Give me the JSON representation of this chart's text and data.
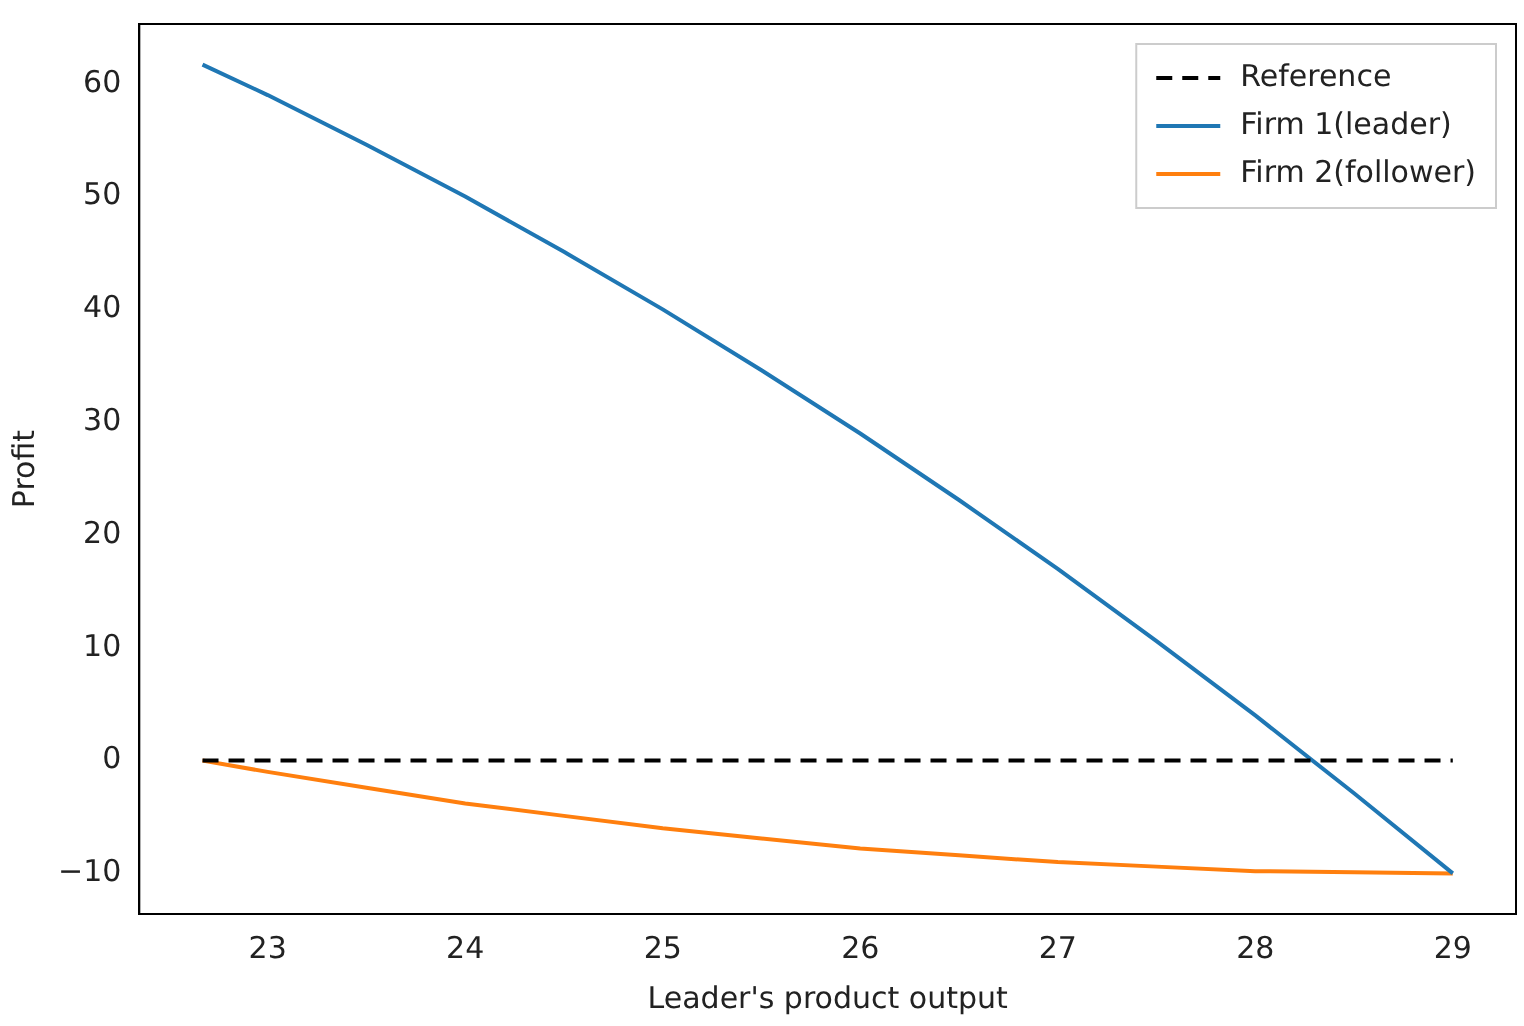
{
  "chart_data": {
    "type": "line",
    "xlabel": "Leader's product output",
    "ylabel": "Profit",
    "x": [
      22.67,
      23,
      23.5,
      24,
      24.5,
      25,
      25.5,
      26,
      26.5,
      27,
      27.5,
      28,
      28.5,
      29
    ],
    "series": [
      {
        "name": "Reference",
        "color": "#000000",
        "line_style": "dashed",
        "values": [
          0,
          0,
          0,
          0,
          0,
          0,
          0,
          0,
          0,
          0,
          0,
          0,
          0,
          0
        ]
      },
      {
        "name": "Firm 1(leader)",
        "color": "#1f77b4",
        "values": [
          61.7,
          59.0,
          54.6,
          50.0,
          45.1,
          40.0,
          34.6,
          29.0,
          23.1,
          17.0,
          10.6,
          4.0,
          -2.9,
          -10
        ]
      },
      {
        "name": "Firm 2(follower)",
        "color": "#ff7f0e",
        "values": [
          0,
          -1.0,
          -2.4,
          -3.8,
          -4.9,
          -6.0,
          -6.9,
          -7.8,
          -8.4,
          -9.0,
          -9.4,
          -9.8,
          -9.9,
          -10
        ]
      }
    ],
    "xlim": [
      22.35,
      29.32
    ],
    "xticks": [
      23,
      24,
      25,
      26,
      27,
      28,
      29
    ],
    "ylim": [
      -13.6,
      65.3
    ],
    "yticks": [
      -10,
      0,
      10,
      20,
      30,
      40,
      50,
      60
    ],
    "grid": false,
    "legend": "top right",
    "marker": "none"
  }
}
